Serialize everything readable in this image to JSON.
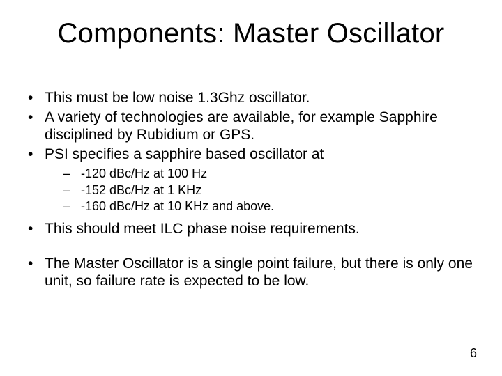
{
  "slide": {
    "title": "Components: Master Oscillator",
    "bullets": {
      "b1": "This must be  low noise 1.3Ghz oscillator.",
      "b2": "A variety of technologies are available, for example Sapphire disciplined by Rubidium or GPS.",
      "b3": "PSI specifies a sapphire based oscillator at",
      "b3_sub": {
        "s1": "-120 dBc/Hz at 100 Hz",
        "s2": "-152 dBc/Hz at 1 KHz",
        "s3": "-160 dBc/Hz at 10 KHz and above."
      },
      "b4": "This should meet ILC phase noise requirements.",
      "b5": "The Master Oscillator is a single point failure, but there is only one unit, so failure rate is expected to be low."
    },
    "page_number": "6"
  },
  "style": {
    "background_color": "#ffffff",
    "text_color": "#000000",
    "title_fontsize": 40,
    "body_fontsize": 21,
    "sub_fontsize": 18,
    "font_family": "Arial"
  }
}
